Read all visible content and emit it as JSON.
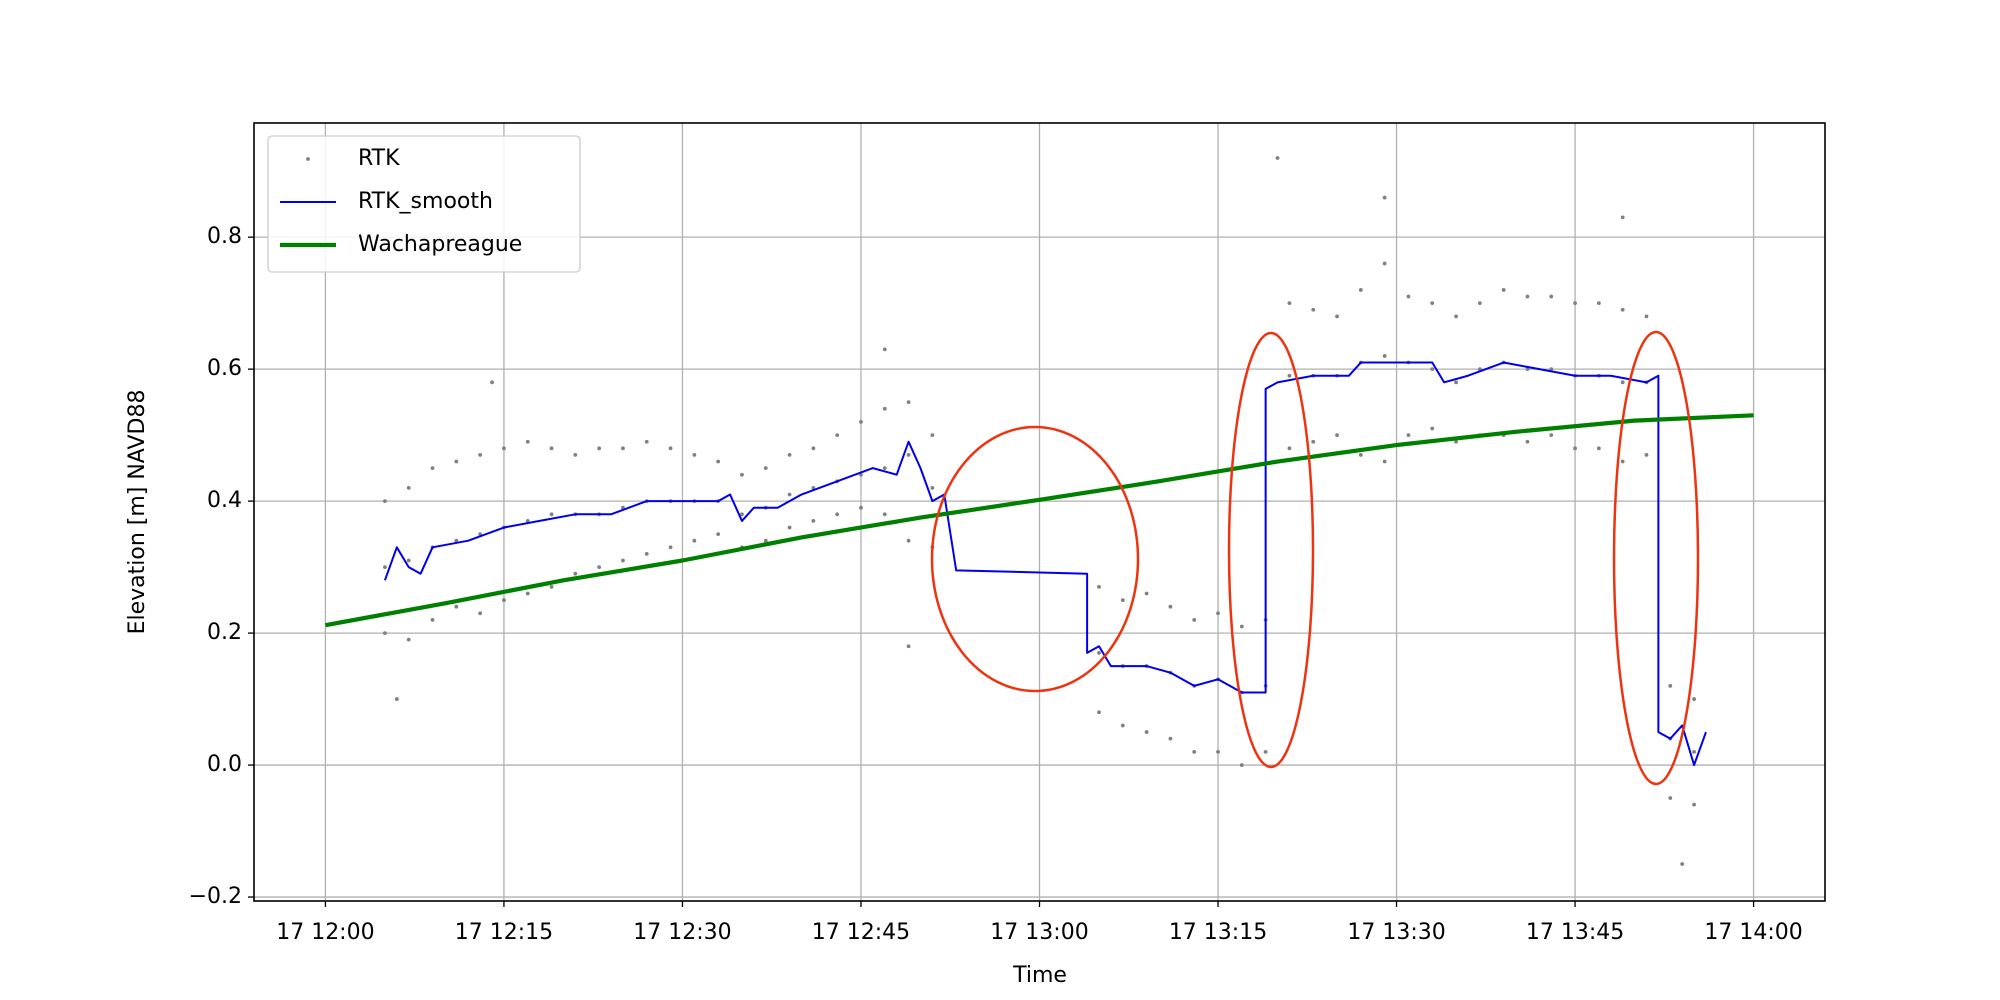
{
  "chart_data": {
    "type": "line",
    "xlabel": "Time",
    "ylabel": "Elevation [m] NAVD88",
    "xlim": [
      "17 11:54",
      "17 14:06"
    ],
    "xticks": [
      "17 12:00",
      "17 12:15",
      "17 12:30",
      "17 12:45",
      "17 13:00",
      "17 13:15",
      "17 13:30",
      "17 13:45",
      "17 14:00"
    ],
    "ylim": [
      -0.206,
      0.973
    ],
    "yticks": [
      {
        "value": -0.2,
        "label": "−0.2"
      },
      {
        "value": 0,
        "label": "0.0"
      },
      0.2,
      0.4,
      0.6,
      0.8
    ],
    "grid": true,
    "legend": "upper left",
    "series": [
      {
        "name": "RTK",
        "type": "scatter",
        "color": "#808080",
        "x": [
          "17 12:05",
          "17 12:05",
          "17 12:05",
          "17 12:07",
          "17 12:07",
          "17 12:07",
          "17 12:09",
          "17 12:09",
          "17 12:09",
          "17 12:11",
          "17 12:11",
          "17 12:11",
          "17 12:13",
          "17 12:13",
          "17 12:13",
          "17 12:15",
          "17 12:15",
          "17 12:15",
          "17 12:17",
          "17 12:17",
          "17 12:17",
          "17 12:19",
          "17 12:19",
          "17 12:19",
          "17 12:21",
          "17 12:21",
          "17 12:21",
          "17 12:23",
          "17 12:23",
          "17 12:23",
          "17 12:25",
          "17 12:25",
          "17 12:25",
          "17 12:27",
          "17 12:27",
          "17 12:27",
          "17 12:29",
          "17 12:29",
          "17 12:29",
          "17 12:31",
          "17 12:31",
          "17 12:31",
          "17 12:33",
          "17 12:33",
          "17 12:33",
          "17 12:35",
          "17 12:35",
          "17 12:35",
          "17 12:37",
          "17 12:37",
          "17 12:37",
          "17 12:39",
          "17 12:39",
          "17 12:39",
          "17 12:41",
          "17 12:41",
          "17 12:41",
          "17 12:43",
          "17 12:43",
          "17 12:43",
          "17 12:45",
          "17 12:45",
          "17 12:45",
          "17 12:47",
          "17 12:47",
          "17 12:47",
          "17 12:49",
          "17 12:49",
          "17 12:49",
          "17 12:51",
          "17 12:51",
          "17 12:51",
          "17 13:05",
          "17 13:05",
          "17 13:05",
          "17 13:07",
          "17 13:07",
          "17 13:07",
          "17 13:09",
          "17 13:09",
          "17 13:09",
          "17 13:11",
          "17 13:11",
          "17 13:11",
          "17 13:13",
          "17 13:13",
          "17 13:13",
          "17 13:15",
          "17 13:15",
          "17 13:15",
          "17 13:17",
          "17 13:17",
          "17 13:17",
          "17 13:19",
          "17 13:19",
          "17 13:19",
          "17 13:21",
          "17 13:21",
          "17 13:21",
          "17 13:23",
          "17 13:23",
          "17 13:23",
          "17 13:25",
          "17 13:25",
          "17 13:25",
          "17 13:27",
          "17 13:27",
          "17 13:27",
          "17 13:29",
          "17 13:29",
          "17 13:29",
          "17 13:31",
          "17 13:31",
          "17 13:31",
          "17 13:33",
          "17 13:33",
          "17 13:33",
          "17 13:35",
          "17 13:35",
          "17 13:35",
          "17 13:37",
          "17 13:37",
          "17 13:37",
          "17 13:39",
          "17 13:39",
          "17 13:39",
          "17 13:41",
          "17 13:41",
          "17 13:41",
          "17 13:43",
          "17 13:43",
          "17 13:43",
          "17 13:45",
          "17 13:45",
          "17 13:45",
          "17 13:47",
          "17 13:47",
          "17 13:47",
          "17 13:49",
          "17 13:49",
          "17 13:49",
          "17 13:51",
          "17 13:51",
          "17 13:51",
          "17 13:53",
          "17 13:53",
          "17 13:53",
          "17 13:55",
          "17 13:55",
          "17 13:55",
          "17 12:06",
          "17 12:14",
          "17 12:47",
          "17 12:49",
          "17 13:20",
          "17 13:29",
          "17 13:49",
          "17 13:54"
        ],
        "values": [
          0.4,
          0.3,
          0.2,
          0.42,
          0.31,
          0.19,
          0.45,
          0.33,
          0.22,
          0.46,
          0.34,
          0.24,
          0.47,
          0.35,
          0.23,
          0.48,
          0.36,
          0.25,
          0.49,
          0.37,
          0.26,
          0.48,
          0.38,
          0.27,
          0.47,
          0.38,
          0.29,
          0.48,
          0.38,
          0.3,
          0.48,
          0.39,
          0.31,
          0.49,
          0.4,
          0.32,
          0.48,
          0.4,
          0.33,
          0.47,
          0.4,
          0.34,
          0.46,
          0.4,
          0.35,
          0.44,
          0.38,
          0.33,
          0.45,
          0.39,
          0.34,
          0.47,
          0.41,
          0.36,
          0.48,
          0.42,
          0.37,
          0.5,
          0.43,
          0.38,
          0.52,
          0.44,
          0.39,
          0.54,
          0.45,
          0.38,
          0.55,
          0.47,
          0.34,
          0.5,
          0.42,
          0.33,
          0.27,
          0.17,
          0.08,
          0.25,
          0.15,
          0.06,
          0.26,
          0.15,
          0.05,
          0.24,
          0.14,
          0.04,
          0.22,
          0.12,
          0.02,
          0.23,
          0.13,
          0.02,
          0.21,
          0.11,
          0.0,
          0.22,
          0.12,
          0.02,
          0.7,
          0.59,
          0.48,
          0.69,
          0.59,
          0.49,
          0.68,
          0.59,
          0.5,
          0.72,
          0.61,
          0.47,
          0.76,
          0.62,
          0.46,
          0.71,
          0.61,
          0.5,
          0.7,
          0.6,
          0.51,
          0.68,
          0.58,
          0.49,
          0.7,
          0.6,
          0.5,
          0.72,
          0.61,
          0.5,
          0.71,
          0.6,
          0.49,
          0.71,
          0.6,
          0.5,
          0.7,
          0.59,
          0.48,
          0.7,
          0.59,
          0.48,
          0.69,
          0.58,
          0.46,
          0.68,
          0.58,
          0.47,
          0.12,
          0.04,
          -0.05,
          0.1,
          0.02,
          -0.06,
          0.1,
          0.58,
          0.63,
          0.18,
          0.92,
          0.86,
          0.83,
          -0.15
        ]
      },
      {
        "name": "RTK_smooth",
        "type": "line",
        "color": "#0000ee",
        "x": [
          "17 12:05",
          "17 12:06",
          "17 12:07",
          "17 12:08",
          "17 12:09",
          "17 12:12",
          "17 12:15",
          "17 12:18",
          "17 12:21",
          "17 12:24",
          "17 12:27",
          "17 12:30",
          "17 12:33",
          "17 12:34",
          "17 12:35",
          "17 12:36",
          "17 12:38",
          "17 12:40",
          "17 12:43",
          "17 12:46",
          "17 12:48",
          "17 12:49",
          "17 12:50",
          "17 12:51",
          "17 12:52",
          "17 12:53",
          "17 13:04",
          "17 13:04",
          "17 13:05",
          "17 13:06",
          "17 13:09",
          "17 13:11",
          "17 13:13",
          "17 13:15",
          "17 13:17",
          "17 13:19",
          "17 13:19",
          "17 13:20",
          "17 13:23",
          "17 13:26",
          "17 13:27",
          "17 13:30",
          "17 13:33",
          "17 13:34",
          "17 13:36",
          "17 13:39",
          "17 13:42",
          "17 13:45",
          "17 13:48",
          "17 13:51",
          "17 13:52",
          "17 13:52",
          "17 13:53",
          "17 13:54",
          "17 13:55",
          "17 13:56"
        ],
        "values": [
          0.28,
          0.33,
          0.3,
          0.29,
          0.33,
          0.34,
          0.36,
          0.37,
          0.38,
          0.38,
          0.4,
          0.4,
          0.4,
          0.41,
          0.37,
          0.39,
          0.39,
          0.41,
          0.43,
          0.45,
          0.44,
          0.49,
          0.45,
          0.4,
          0.41,
          0.295,
          0.29,
          0.17,
          0.18,
          0.15,
          0.15,
          0.14,
          0.12,
          0.13,
          0.11,
          0.11,
          0.57,
          0.58,
          0.59,
          0.59,
          0.61,
          0.61,
          0.61,
          0.58,
          0.59,
          0.61,
          0.6,
          0.59,
          0.59,
          0.58,
          0.59,
          0.05,
          0.04,
          0.06,
          0.0,
          0.05
        ]
      },
      {
        "name": "Wachapreague",
        "type": "line",
        "color": "#008000",
        "x": [
          "17 12:00",
          "17 12:10",
          "17 12:20",
          "17 12:30",
          "17 12:40",
          "17 12:50",
          "17 13:00",
          "17 13:10",
          "17 13:20",
          "17 13:30",
          "17 13:40",
          "17 13:50",
          "17 14:00"
        ],
        "values": [
          0.212,
          0.245,
          0.28,
          0.31,
          0.345,
          0.375,
          0.402,
          0.43,
          0.46,
          0.485,
          0.505,
          0.522,
          0.53
        ]
      }
    ]
  }
}
